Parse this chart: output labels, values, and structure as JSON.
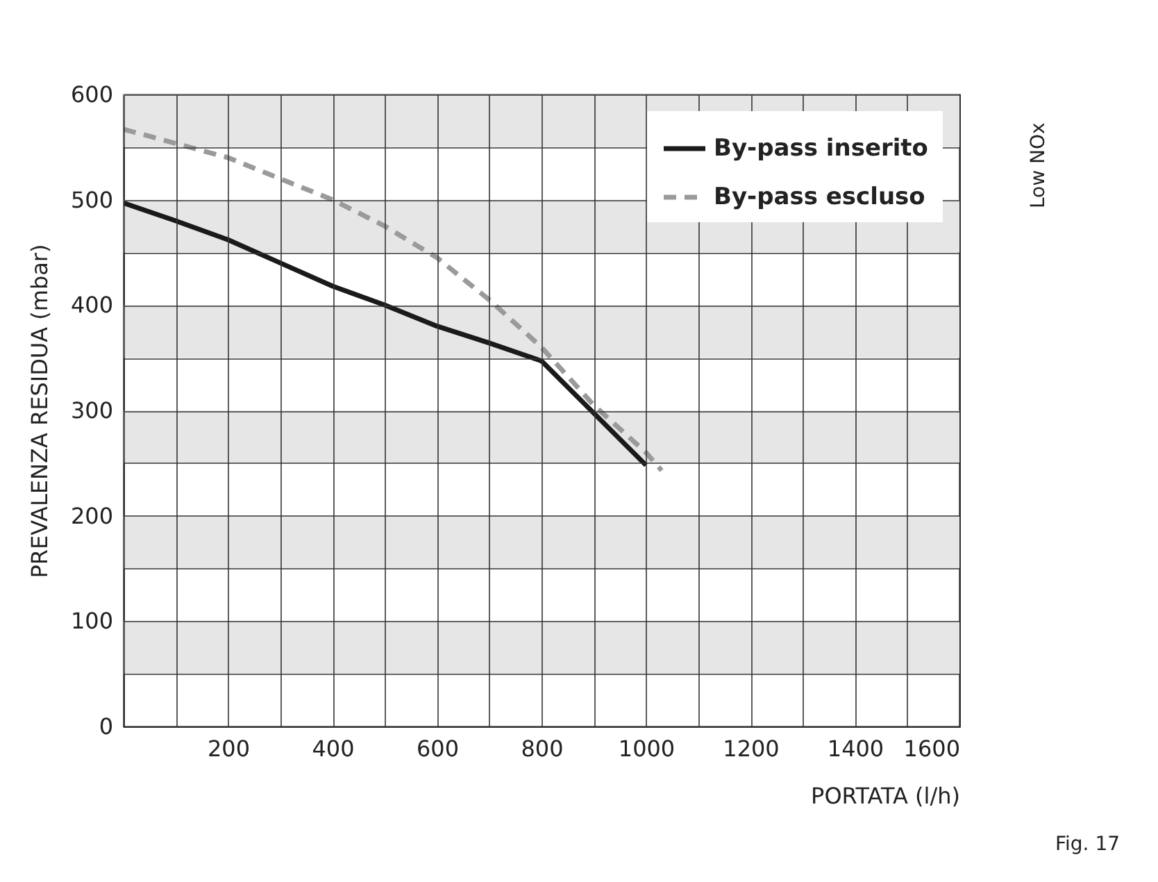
{
  "chart_data": {
    "type": "line",
    "xlabel": "PORTATA (l/h)",
    "ylabel": "PREVALENZA RESIDUA (mbar)",
    "xlim": [
      0,
      1600
    ],
    "ylim": [
      0,
      600
    ],
    "xticks": [
      {
        "value": 0,
        "label": null
      },
      {
        "value": 100,
        "label": null
      },
      200,
      {
        "value": 300,
        "label": null
      },
      400,
      {
        "value": 500,
        "label": null
      },
      600,
      {
        "value": 700,
        "label": null
      },
      800,
      {
        "value": 900,
        "label": null
      },
      1000,
      {
        "value": 1100,
        "label": null
      },
      1200,
      {
        "value": 1300,
        "label": null
      },
      1400,
      {
        "value": 1500,
        "label": null
      },
      1600
    ],
    "yticks": [
      0,
      {
        "value": 50,
        "label": null
      },
      100,
      {
        "value": 150,
        "label": null
      },
      200,
      {
        "value": 250,
        "label": null
      },
      300,
      {
        "value": 350,
        "label": null
      },
      400,
      {
        "value": 450,
        "label": null
      },
      500,
      {
        "value": 550,
        "label": null
      },
      600
    ],
    "grid": true,
    "legend": "top right",
    "bands": [
      {
        "axis": "y",
        "from": 50,
        "to": 100,
        "color": "#e6e6e6"
      },
      {
        "axis": "y",
        "from": 150,
        "to": 200,
        "color": "#e6e6e6"
      },
      {
        "axis": "y",
        "from": 250,
        "to": 300,
        "color": "#e6e6e6"
      },
      {
        "axis": "y",
        "from": 350,
        "to": 400,
        "color": "#e6e6e6"
      },
      {
        "axis": "y",
        "from": 450,
        "to": 500,
        "color": "#e6e6e6"
      },
      {
        "axis": "y",
        "from": 550,
        "to": 600,
        "color": "#e6e6e6"
      }
    ],
    "series": [
      {
        "name": "By-pass inserito",
        "color": "#1a1a1a",
        "line_style": "solid",
        "x": [
          0,
          100,
          200,
          300,
          400,
          500,
          600,
          700,
          800,
          1000
        ],
        "values": [
          497,
          480,
          462,
          440,
          418,
          400,
          380,
          364,
          347,
          248
        ]
      },
      {
        "name": "By-pass escluso",
        "color": "#9a9a9a",
        "line_style": "dashed",
        "x": [
          0,
          200,
          400,
          500,
          600,
          700,
          800,
          900,
          1000,
          1030
        ],
        "values": [
          567,
          540,
          500,
          475,
          445,
          405,
          360,
          305,
          260,
          243
        ]
      }
    ],
    "annotations": [
      "Low NOx",
      "Fig. 17"
    ]
  }
}
